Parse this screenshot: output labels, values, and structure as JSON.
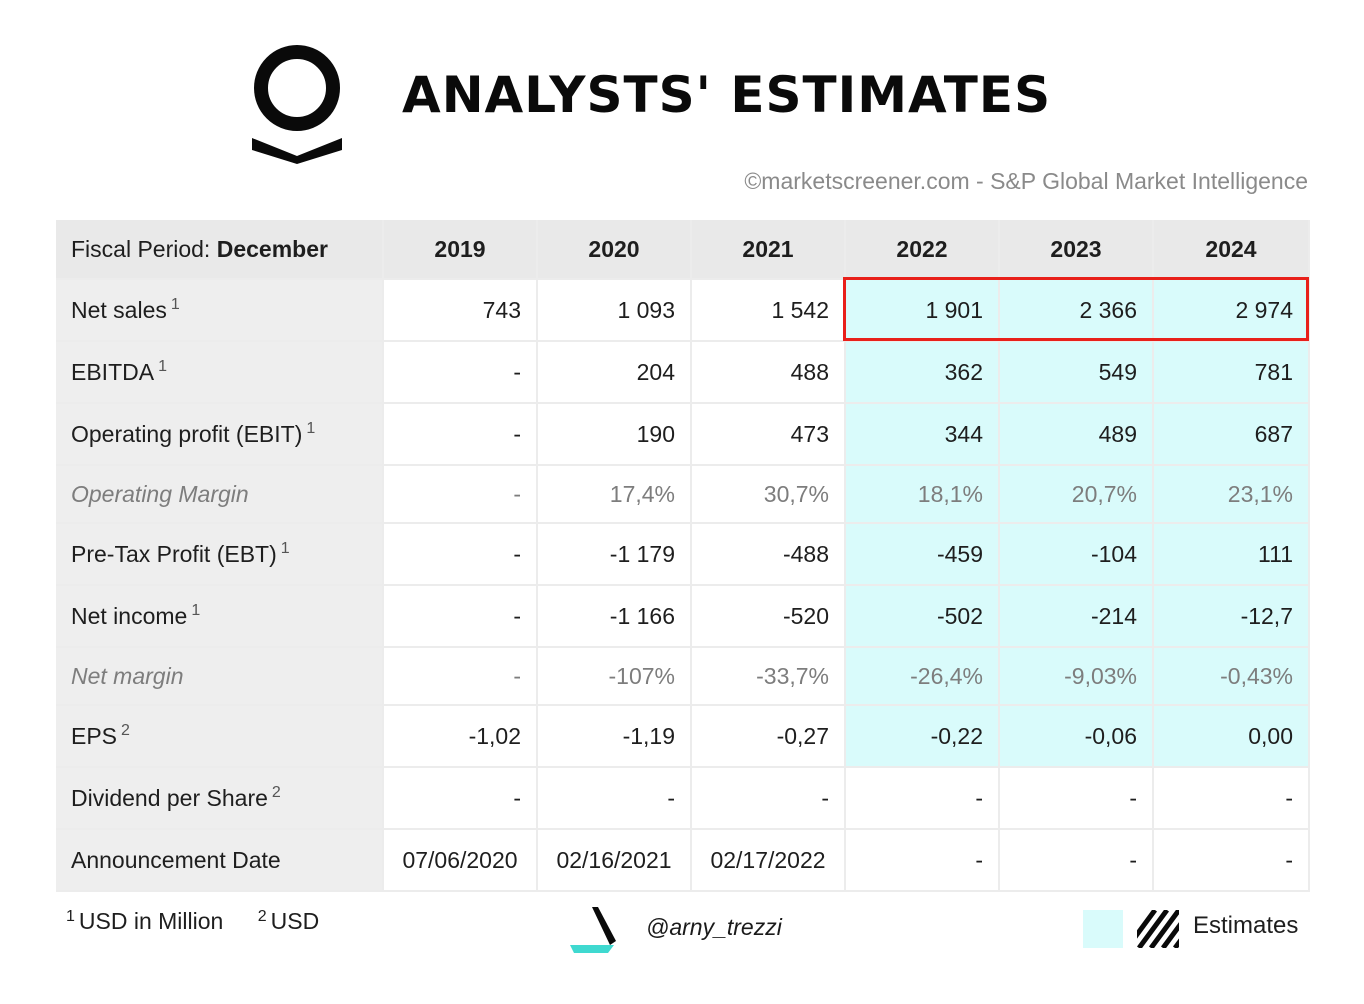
{
  "header": {
    "title": "ANALYSTS' ESTIMATES",
    "source": "©marketscreener.com - S&P Global Market Intelligence"
  },
  "chart_data": {
    "type": "table",
    "title": "ANALYSTS' ESTIMATES",
    "fiscal_label": "Fiscal Period:",
    "fiscal_value": "December",
    "columns": [
      "2019",
      "2020",
      "2021",
      "2022",
      "2023",
      "2024"
    ],
    "estimate_columns": [
      "2022",
      "2023",
      "2024"
    ],
    "rows": [
      {
        "label": "Net sales",
        "note": "1",
        "style": "normal",
        "values": [
          "743",
          "1 093",
          "1 542",
          "1 901",
          "2 366",
          "2 974"
        ]
      },
      {
        "label": "EBITDA",
        "note": "1",
        "style": "normal",
        "values": [
          "-",
          "204",
          "488",
          "362",
          "549",
          "781"
        ]
      },
      {
        "label": "Operating profit (EBIT)",
        "note": "1",
        "style": "normal",
        "values": [
          "-",
          "190",
          "473",
          "344",
          "489",
          "687"
        ]
      },
      {
        "label": "Operating Margin",
        "note": "",
        "style": "pct",
        "values": [
          "-",
          "17,4%",
          "30,7%",
          "18,1%",
          "20,7%",
          "23,1%"
        ]
      },
      {
        "label": "Pre-Tax Profit (EBT)",
        "note": "1",
        "style": "normal",
        "values": [
          "-",
          "-1 179",
          "-488",
          "-459",
          "-104",
          "111"
        ]
      },
      {
        "label": "Net income",
        "note": "1",
        "style": "normal",
        "values": [
          "-",
          "-1 166",
          "-520",
          "-502",
          "-214",
          "-12,7"
        ]
      },
      {
        "label": "Net margin",
        "note": "",
        "style": "pct",
        "values": [
          "-",
          "-107%",
          "-33,7%",
          "-26,4%",
          "-9,03%",
          "-0,43%"
        ]
      },
      {
        "label": "EPS",
        "note": "2",
        "style": "normal",
        "values": [
          "-1,02",
          "-1,19",
          "-0,27",
          "-0,22",
          "-0,06",
          "0,00"
        ]
      },
      {
        "label": "Dividend per Share",
        "note": "2",
        "style": "div",
        "values": [
          "-",
          "-",
          "-",
          "-",
          "-",
          "-"
        ]
      },
      {
        "label": "Announcement Date",
        "note": "",
        "style": "date",
        "values": [
          "07/06/2020",
          "02/16/2021",
          "02/17/2022",
          "-",
          "-",
          "-"
        ]
      }
    ],
    "highlighted_row": "Net sales",
    "footnotes": [
      {
        "mark": "1",
        "text": "USD in Million"
      },
      {
        "mark": "2",
        "text": "USD"
      }
    ],
    "legend": "Estimates"
  },
  "footer": {
    "handle": "@arny_trezzi"
  },
  "colors": {
    "estimate_bg": "#d9fbfb",
    "highlight_border": "#e8201a",
    "header_bg": "#e9e9e9",
    "label_bg": "#eeeeee",
    "accent_teal": "#3fd9d0"
  },
  "icons": {
    "company_logo": "palantir-logo-icon",
    "author_logo": "author-logo-icon",
    "hatch": "hatch-icon"
  }
}
